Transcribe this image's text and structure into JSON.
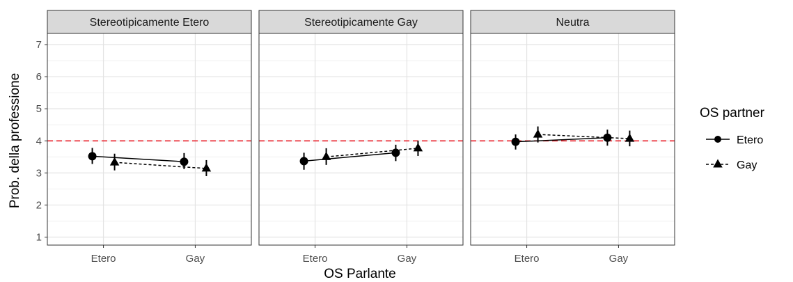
{
  "chart_data": {
    "type": "line",
    "xlabel": "OS Parlante",
    "ylabel": "Prob. della professione",
    "x_categories": [
      "Etero",
      "Gay"
    ],
    "ylim": [
      0.75,
      7.35
    ],
    "y_ticks": [
      1,
      2,
      3,
      4,
      5,
      6,
      7
    ],
    "grid": true,
    "reference_line": {
      "y": 4,
      "color": "#e8202a",
      "style": "dashed"
    },
    "legend": {
      "title": "OS partner",
      "position": "right",
      "entries": [
        {
          "label": "Etero",
          "shape": "circle",
          "line": "solid"
        },
        {
          "label": "Gay",
          "shape": "triangle",
          "line": "dashed"
        }
      ]
    },
    "facets": [
      {
        "title": "Stereotipicamente Etero",
        "series": [
          {
            "name": "Etero",
            "values": [
              3.52,
              3.35
            ],
            "err_low": [
              3.28,
              3.12
            ],
            "err_high": [
              3.78,
              3.62
            ]
          },
          {
            "name": "Gay",
            "values": [
              3.33,
              3.14
            ],
            "err_low": [
              3.08,
              2.9
            ],
            "err_high": [
              3.6,
              3.4
            ]
          }
        ]
      },
      {
        "title": "Stereotipicamente Gay",
        "series": [
          {
            "name": "Etero",
            "values": [
              3.37,
              3.63
            ],
            "err_low": [
              3.1,
              3.37
            ],
            "err_high": [
              3.63,
              3.88
            ]
          },
          {
            "name": "Gay",
            "values": [
              3.5,
              3.77
            ],
            "err_low": [
              3.25,
              3.53
            ],
            "err_high": [
              3.77,
              4.0
            ]
          }
        ]
      },
      {
        "title": "Neutra",
        "series": [
          {
            "name": "Etero",
            "values": [
              3.97,
              4.1
            ],
            "err_low": [
              3.73,
              3.85
            ],
            "err_high": [
              4.2,
              4.35
            ]
          },
          {
            "name": "Gay",
            "values": [
              4.2,
              4.07
            ],
            "err_low": [
              3.95,
              3.83
            ],
            "err_high": [
              4.45,
              4.32
            ]
          }
        ]
      }
    ]
  }
}
